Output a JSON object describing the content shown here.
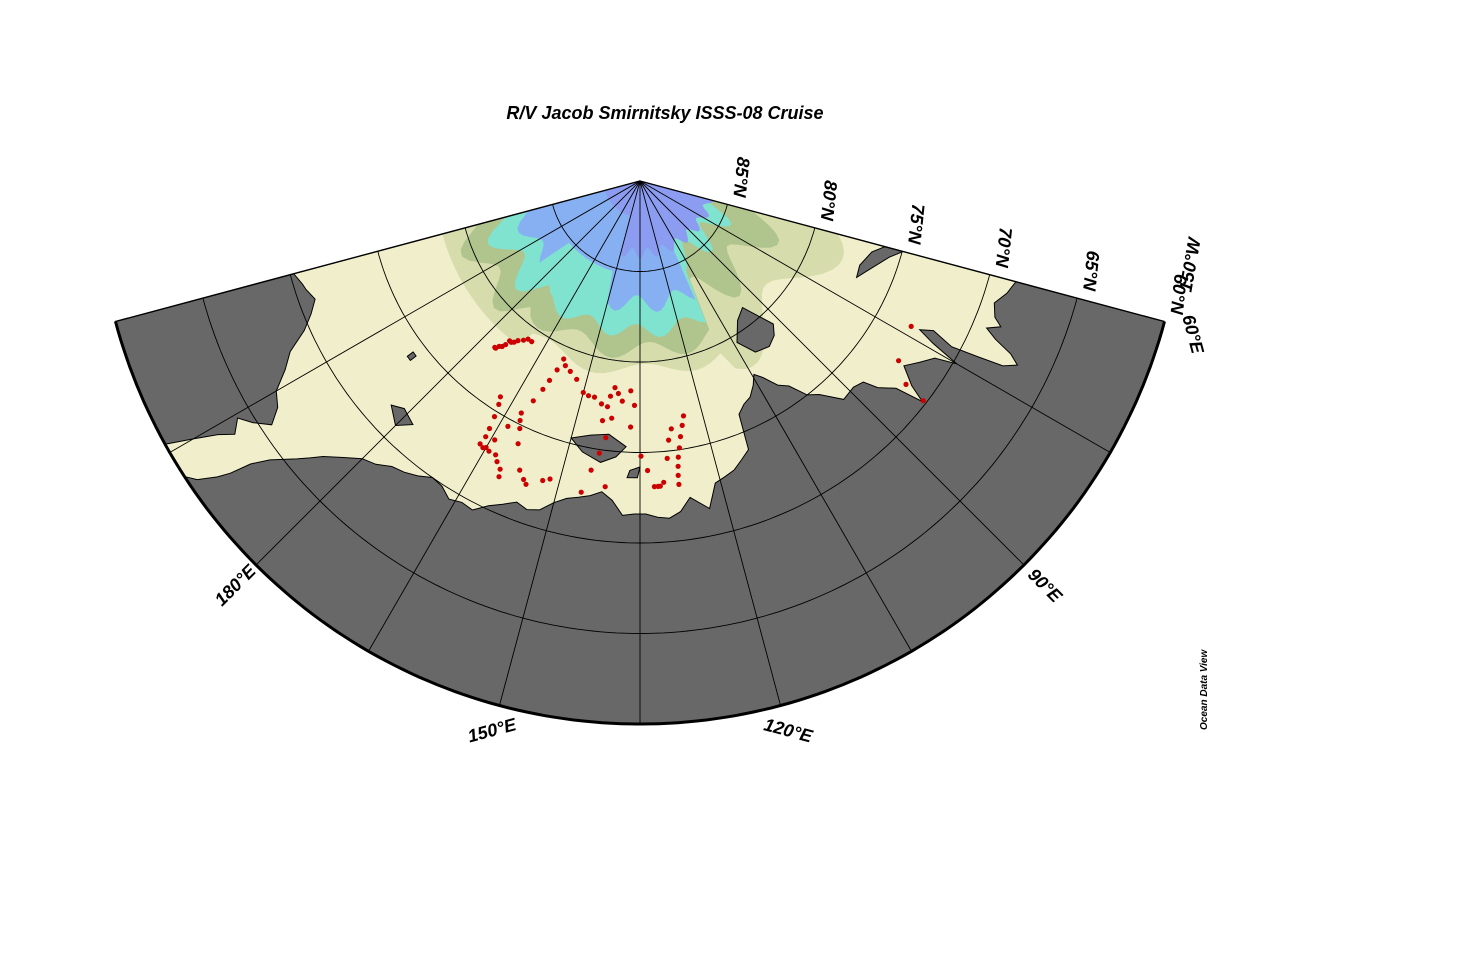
{
  "title": "R/V Jacob Smirnitsky ISSS-08 Cruise",
  "credit": "Ocean Data View",
  "map": {
    "projection": "north polar",
    "lat_range": [
      60,
      90
    ],
    "lon_range_label": "60°E to 150°W",
    "colors": {
      "land": "#686868",
      "shelf": "#f1efcb",
      "shallow": "#d6dcac",
      "mid": "#b0c48e",
      "slope": "#7fe3cf",
      "deep": "#86b0f2",
      "abyss": "#8c9cf0",
      "station": "#cc0000"
    }
  },
  "lat_labels": [
    {
      "text": "60°N",
      "lat": 60
    },
    {
      "text": "65°N",
      "lat": 65
    },
    {
      "text": "70°N",
      "lat": 70
    },
    {
      "text": "75°N",
      "lat": 75
    },
    {
      "text": "80°N",
      "lat": 80
    },
    {
      "text": "85°N",
      "lat": 85
    }
  ],
  "lon_labels": [
    {
      "text": "60°E",
      "lon": 60
    },
    {
      "text": "90°E",
      "lon": 90
    },
    {
      "text": "120°E",
      "lon": 120
    },
    {
      "text": "150°E",
      "lon": 150
    },
    {
      "text": "180°E",
      "lon": 180
    },
    {
      "text": "150°W",
      "lon": 210
    }
  ],
  "stations_lonlat": [
    [
      73.2,
      73.0
    ],
    [
      79.8,
      72.6
    ],
    [
      82.4,
      71.5
    ],
    [
      82.8,
      70.2
    ],
    [
      124.5,
      76.8
    ],
    [
      125.2,
      76.3
    ],
    [
      126.0,
      75.7
    ],
    [
      126.6,
      75.1
    ],
    [
      127.1,
      74.6
    ],
    [
      127.4,
      74.1
    ],
    [
      127.6,
      73.6
    ],
    [
      127.7,
      73.1
    ],
    [
      127.8,
      76.2
    ],
    [
      128.7,
      75.6
    ],
    [
      129.4,
      74.6
    ],
    [
      131.6,
      73.1
    ],
    [
      132.3,
      73.1
    ],
    [
      133.5,
      74.0
    ],
    [
      134.8,
      74.8
    ],
    [
      137.2,
      76.4
    ],
    [
      130.5,
      73.3
    ],
    [
      131.2,
      73.1
    ],
    [
      136.4,
      77.6
    ],
    [
      137.5,
      78.4
    ],
    [
      139.6,
      77.8
    ],
    [
      140.8,
      78.2
    ],
    [
      141.9,
      78.5
    ],
    [
      142.8,
      78.0
    ],
    [
      143.2,
      77.4
    ],
    [
      143.9,
      76.6
    ],
    [
      141.8,
      76.8
    ],
    [
      142.6,
      75.7
    ],
    [
      143.5,
      74.8
    ],
    [
      144.6,
      73.8
    ],
    [
      145.7,
      72.5
    ],
    [
      141.5,
      73.0
    ],
    [
      144.8,
      77.5
    ],
    [
      146.9,
      77.8
    ],
    [
      148.5,
      77.8
    ],
    [
      150.0,
      77.9
    ],
    [
      152.7,
      78.5
    ],
    [
      155.1,
      78.8
    ],
    [
      157.0,
      79.0
    ],
    [
      158.2,
      79.3
    ],
    [
      158.7,
      78.6
    ],
    [
      159.4,
      77.9
    ],
    [
      160.0,
      77.3
    ],
    [
      160.9,
      76.5
    ],
    [
      162.1,
      75.6
    ],
    [
      163.3,
      74.6
    ],
    [
      164.3,
      73.6
    ],
    [
      165.0,
      73.0
    ],
    [
      151.8,
      72.8
    ],
    [
      153.0,
      72.6
    ],
    [
      155.6,
      72.1
    ],
    [
      156.3,
      72.3
    ],
    [
      157.6,
      72.7
    ],
    [
      159.9,
      74.0
    ],
    [
      160.9,
      74.8
    ],
    [
      161.6,
      75.2
    ],
    [
      167.9,
      75.8
    ],
    [
      167.3,
      75.4
    ],
    [
      166.7,
      74.7
    ],
    [
      166.3,
      74.0
    ],
    [
      166.1,
      73.5
    ],
    [
      166.3,
      73.0
    ],
    [
      165.5,
      72.9
    ],
    [
      164.2,
      72.9
    ],
    [
      162.8,
      72.9
    ],
    [
      162.0,
      72.6
    ],
    [
      160.9,
      72.3
    ],
    [
      160.5,
      71.9
    ]
  ],
  "stations_cluster_lonlat": [
    [
      169.0,
      79.3
    ],
    [
      170.3,
      79.3
    ],
    [
      171.2,
      79.1
    ],
    [
      172.4,
      78.9
    ],
    [
      173.0,
      78.7
    ],
    [
      173.6,
      78.6
    ],
    [
      174.2,
      78.6
    ],
    [
      174.4,
      78.3
    ],
    [
      174.8,
      78.1
    ],
    [
      175.4,
      78.0
    ],
    [
      175.8,
      77.8
    ],
    [
      176.1,
      77.8
    ]
  ]
}
